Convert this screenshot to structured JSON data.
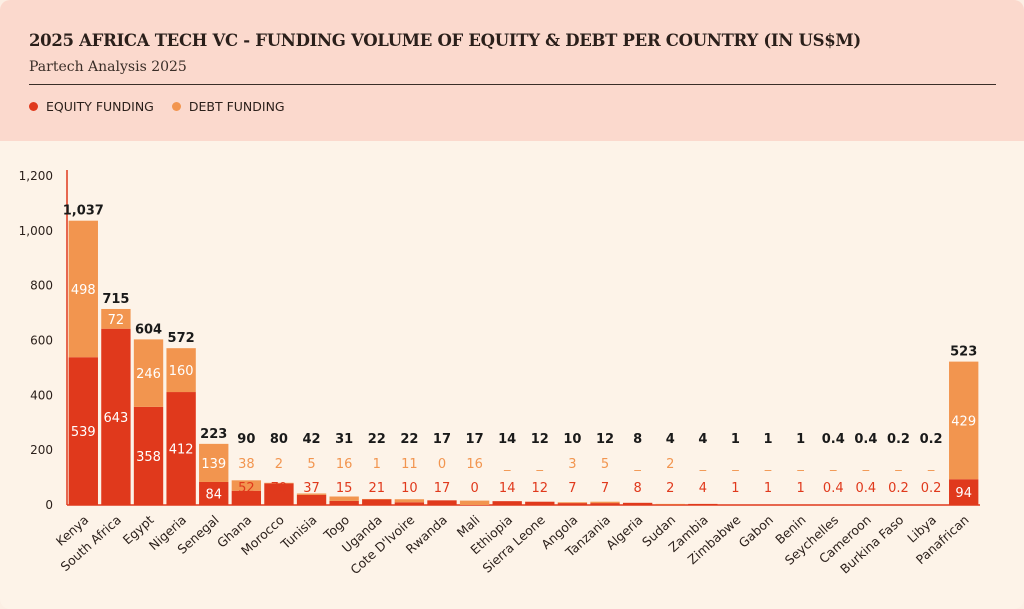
{
  "header": {
    "title": "2025 AFRICA TECH VC - FUNDING VOLUME OF EQUITY & DEBT PER COUNTRY (IN US$M)",
    "subtitle": "Partech Analysis 2025"
  },
  "legend": [
    {
      "label": "EQUITY FUNDING",
      "color": "#e0391c"
    },
    {
      "label": "DEBT FUNDING",
      "color": "#f2954f"
    }
  ],
  "chart_data": {
    "type": "bar",
    "stacked": true,
    "ylim": [
      0,
      1200
    ],
    "yticks": [
      "0",
      "200",
      "400",
      "600",
      "800",
      "1,000",
      "1,200"
    ],
    "yticks_values": [
      0,
      200,
      400,
      600,
      800,
      1000,
      1200
    ],
    "categories": [
      "Kenya",
      "South Africa",
      "Egypt",
      "Nigeria",
      "Senegal",
      "Ghana",
      "Morocco",
      "Tunisia",
      "Togo",
      "Uganda",
      "Cote D'Ivoire",
      "Rwanda",
      "Mali",
      "Ethiopia",
      "Sierra Leone",
      "Angola",
      "Tanzania",
      "Algeria",
      "Sudan",
      "Zambia",
      "Zimbabwe",
      "Gabon",
      "Benin",
      "Seychelles",
      "Cameroon",
      "Burkina Faso",
      "Libya",
      "Panafrican"
    ],
    "series": [
      {
        "name": "EQUITY FUNDING",
        "color": "#e0391c",
        "values": [
          539,
          643,
          358,
          412,
          84,
          52,
          79,
          37,
          15,
          21,
          10,
          17,
          0,
          14,
          12,
          7,
          7,
          8,
          2,
          4,
          1,
          1,
          1,
          0.4,
          0.4,
          0.2,
          0.2,
          94
        ],
        "labels": [
          "539",
          "643",
          "358",
          "412",
          "84",
          "52",
          "79",
          "37",
          "15",
          "21",
          "10",
          "17",
          "0",
          "14",
          "12",
          "7",
          "7",
          "8",
          "2",
          "4",
          "1",
          "1",
          "1",
          "0.4",
          "0.4",
          "0.2",
          "0.2",
          "94"
        ]
      },
      {
        "name": "DEBT FUNDING",
        "color": "#f2954f",
        "values": [
          498,
          72,
          246,
          160,
          139,
          38,
          2,
          5,
          16,
          1,
          11,
          0,
          16,
          0,
          0,
          3,
          5,
          0,
          2,
          0,
          0,
          0,
          0,
          0,
          0,
          0,
          0,
          429
        ],
        "labels": [
          "498",
          "72",
          "246",
          "160",
          "139",
          "38",
          "2",
          "5",
          "16",
          "1",
          "11",
          "0",
          "16",
          "_",
          "_",
          "3",
          "5",
          "_",
          "2",
          "_",
          "_",
          "_",
          "_",
          "_",
          "_",
          "_",
          "_",
          "429"
        ]
      }
    ],
    "totals": [
      "1,037",
      "715",
      "604",
      "572",
      "223",
      "90",
      "80",
      "42",
      "31",
      "22",
      "22",
      "17",
      "17",
      "14",
      "12",
      "10",
      "12",
      "8",
      "4",
      "4",
      "1",
      "1",
      "1",
      "0.4",
      "0.4",
      "0.2",
      "0.2",
      "523"
    ]
  }
}
